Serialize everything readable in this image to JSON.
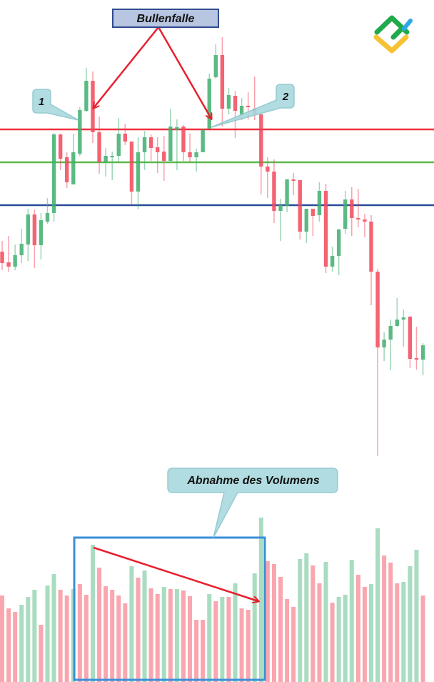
{
  "chart_data": {
    "type": "candlestick",
    "title": "",
    "colors": {
      "up": "#3fae6e",
      "down": "#f2485a",
      "volume_up": "#a9dcc0",
      "volume_down": "#f9a6ae",
      "resistance": "#f0303f",
      "middle": "#5cb84a",
      "support": "#2a4a9a"
    },
    "candles": [
      [
        348,
        363,
        322,
        332
      ],
      [
        333,
        370,
        320,
        327
      ],
      [
        327,
        358,
        322,
        343
      ],
      [
        343,
        380,
        332,
        359
      ],
      [
        358,
        408,
        335,
        400
      ],
      [
        400,
        407,
        325,
        357
      ],
      [
        357,
        402,
        337,
        392
      ],
      [
        390,
        423,
        387,
        402
      ],
      [
        402,
        514,
        390,
        512
      ],
      [
        512,
        513,
        462,
        478
      ],
      [
        480,
        487,
        437,
        445
      ],
      [
        442,
        513,
        442,
        487
      ],
      [
        485,
        550,
        482,
        546
      ],
      [
        545,
        605,
        543,
        587
      ],
      [
        587,
        600,
        500,
        515
      ],
      [
        515,
        537,
        457,
        473
      ],
      [
        473,
        493,
        453,
        482
      ],
      [
        480,
        488,
        448,
        482
      ],
      [
        482,
        535,
        472,
        513
      ],
      [
        513,
        527,
        497,
        502
      ],
      [
        502,
        502,
        413,
        432
      ],
      [
        432,
        508,
        407,
        487
      ],
      [
        487,
        517,
        462,
        508
      ],
      [
        508,
        512,
        475,
        493
      ],
      [
        494,
        508,
        458,
        487
      ],
      [
        488,
        510,
        447,
        475
      ],
      [
        475,
        548,
        473,
        523
      ],
      [
        518,
        533,
        462,
        522
      ],
      [
        523,
        525,
        475,
        487
      ],
      [
        487,
        513,
        473,
        480
      ],
      [
        480,
        492,
        460,
        487
      ],
      [
        487,
        520,
        487,
        518
      ],
      [
        520,
        597,
        520,
        590
      ],
      [
        592,
        638,
        590,
        623
      ],
      [
        623,
        648,
        523,
        548
      ],
      [
        548,
        577,
        540,
        567
      ],
      [
        566,
        573,
        507,
        545
      ],
      [
        540,
        563,
        532,
        552
      ],
      [
        552,
        571,
        533,
        550
      ],
      [
        548,
        593,
        532,
        540
      ],
      [
        540,
        542,
        428,
        467
      ],
      [
        467,
        480,
        423,
        460
      ],
      [
        460,
        477,
        388,
        405
      ],
      [
        405,
        422,
        363,
        413
      ],
      [
        412,
        450,
        403,
        449
      ],
      [
        449,
        458,
        427,
        447
      ],
      [
        448,
        448,
        365,
        376
      ],
      [
        376,
        408,
        360,
        408
      ],
      [
        408,
        408,
        370,
        398
      ],
      [
        399,
        445,
        390,
        433
      ],
      [
        433,
        443,
        318,
        327
      ],
      [
        327,
        355,
        320,
        342
      ],
      [
        342,
        380,
        315,
        379
      ],
      [
        380,
        433,
        373,
        421
      ],
      [
        421,
        438,
        370,
        395
      ],
      [
        395,
        436,
        382,
        393
      ],
      [
        393,
        401,
        368,
        390
      ],
      [
        390,
        399,
        273,
        320
      ],
      [
        320,
        324,
        62,
        214
      ],
      [
        214,
        235,
        195,
        225
      ],
      [
        225,
        253,
        182,
        244
      ],
      [
        244,
        283,
        243,
        253
      ],
      [
        253,
        267,
        215,
        256
      ],
      [
        257,
        258,
        185,
        198
      ],
      [
        199,
        243,
        183,
        197
      ],
      [
        197,
        220,
        175,
        217
      ]
    ],
    "volume": [
      121,
      103,
      98,
      108,
      119,
      129,
      80,
      135,
      151,
      129,
      121,
      130,
      137,
      122,
      192,
      160,
      134,
      129,
      121,
      110,
      162,
      146,
      156,
      131,
      123,
      133,
      130,
      130,
      128,
      120,
      87,
      87,
      123,
      113,
      119,
      119,
      138,
      103,
      101,
      152,
      230,
      169,
      165,
      147,
      116,
      105,
      172,
      180,
      163,
      138,
      168,
      111,
      119,
      122,
      171,
      150,
      133,
      137,
      215,
      177,
      167,
      138,
      140,
      162,
      185,
      121
    ],
    "volume_up": [
      0,
      0,
      0,
      1,
      1,
      1,
      0,
      1,
      1,
      0,
      0,
      1,
      0,
      0,
      1,
      0,
      0,
      0,
      0,
      0,
      1,
      0,
      1,
      0,
      0,
      1,
      0,
      1,
      0,
      0,
      0,
      0,
      1,
      0,
      1,
      0,
      1,
      0,
      0,
      1,
      1,
      0,
      0,
      0,
      0,
      0,
      1,
      1,
      0,
      0,
      1,
      0,
      1,
      1,
      1,
      0,
      0,
      1,
      1,
      0,
      0,
      0,
      1,
      1,
      1,
      0
    ],
    "levels": {
      "resistance": 519,
      "middle": 473,
      "support": 413
    },
    "annotations": {
      "bull_trap": "Bullenfalle",
      "point_1": "1",
      "point_2": "2",
      "volume_note": "Abnahme des Volumens"
    }
  },
  "logo": {
    "colors": [
      "#1faa4b",
      "#f6c233",
      "#2ea7e8"
    ]
  }
}
